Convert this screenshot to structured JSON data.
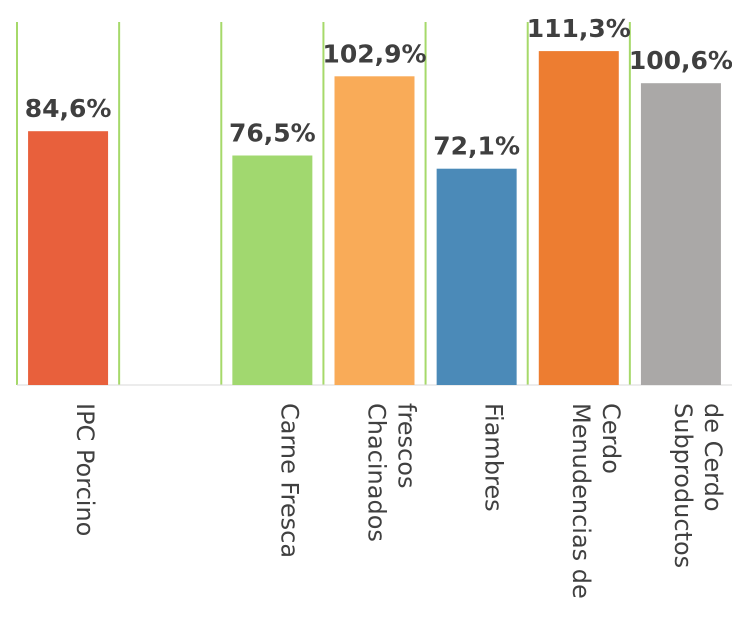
{
  "chart_data": {
    "type": "bar",
    "title": "",
    "xlabel": "",
    "ylabel": "",
    "ylim": [
      0,
      120
    ],
    "grid": false,
    "legend": "none",
    "categories": [
      [
        "IPC Porcino"
      ],
      [],
      [
        "Carne Fresca"
      ],
      [
        "Chacinados",
        "frescos"
      ],
      [
        "Fiambres"
      ],
      [
        "Menudencias de",
        "Cerdo"
      ],
      [
        "Subproductos",
        "de Cerdo"
      ]
    ],
    "values": [
      84.6,
      null,
      76.5,
      102.9,
      72.1,
      111.3,
      100.6
    ],
    "data_labels": [
      "84,6%",
      "",
      "76,5%",
      "102,9%",
      "72,1%",
      "111,3%",
      "100,6%"
    ],
    "colors": [
      "#e8603c",
      "#ffffff",
      "#a1d86f",
      "#f9ab58",
      "#4b8ab8",
      "#ed7d31",
      "#aaa8a7"
    ],
    "divider_color": "#a6d96a",
    "axis_color": "#d9d9d9"
  }
}
